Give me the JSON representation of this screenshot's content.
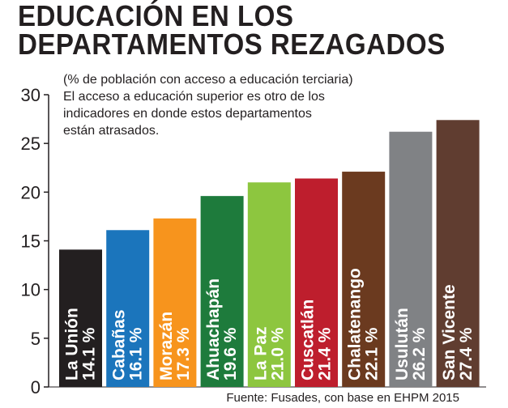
{
  "header": {
    "title_line1": "EDUCACIÓN EN LOS",
    "title_line2": "DEPARTAMENTOS REZAGADOS",
    "subtitle_lines": [
      "(% de población con acceso a educación terciaria)",
      "El acceso a educación superior es otro de los",
      "indicadores en donde estos departamentos",
      "están atrasados."
    ]
  },
  "source": "Fuente: Fusades, con base en EHPM 2015",
  "chart_data": {
    "type": "bar",
    "title": "EDUCACIÓN EN LOS DEPARTAMENTOS REZAGADOS",
    "subtitle": "(% de población con acceso a educación terciaria)",
    "categories": [
      "La Unión",
      "Cabañas",
      "Morazán",
      "Ahuachapán",
      "La Paz",
      "Cuscatlán",
      "Chalatenango",
      "Usulután",
      "San Vicente"
    ],
    "values": [
      14.1,
      16.1,
      17.3,
      19.6,
      21.0,
      21.4,
      22.1,
      26.2,
      27.4
    ],
    "value_labels": [
      "14.1 %",
      "16.1 %",
      "17.3 %",
      "19.6 %",
      "21.0 %",
      "21.4 %",
      "22.1 %",
      "26.2 %",
      "27.4 %"
    ],
    "colors": [
      "#231f20",
      "#1b75bc",
      "#f7941d",
      "#1e7b3c",
      "#8dc63f",
      "#be1e2d",
      "#6b3a1f",
      "#808285",
      "#603d30"
    ],
    "yticks": [
      0,
      5,
      10,
      15,
      20,
      25,
      30
    ],
    "ylim": [
      0,
      30
    ],
    "grid": false,
    "legend": "none",
    "xlabel": "",
    "ylabel": ""
  }
}
